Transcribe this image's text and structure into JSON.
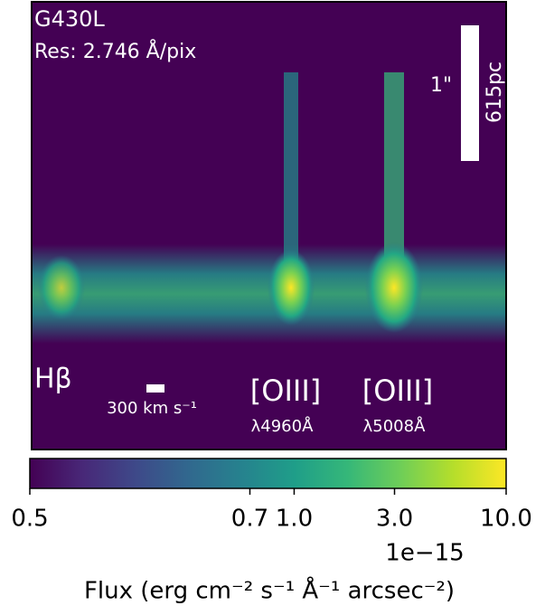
{
  "chart_data": {
    "type": "heatmap",
    "annotations": [
      "G430L",
      "Res: 2.746 Å/pix",
      "1\"",
      "615pc",
      "Hβ",
      "300 km s⁻¹",
      "[OIII]",
      "λ4960Å",
      "[OIII]",
      "λ5008Å"
    ],
    "colorbar": {
      "colormap": "viridis",
      "norm": "power",
      "gamma": 0.2,
      "clim": [
        0.5,
        10
      ],
      "ticks": [
        0.5,
        0.7,
        {
          "value": 1,
          "label": "1.0"
        },
        {
          "value": 3,
          "label": "3.0"
        },
        {
          "value": 10,
          "label": "10.0"
        }
      ],
      "offset_text": "1e−15",
      "label": "Flux (erg cm⁻² s⁻¹ Å⁻¹ arcsec⁻²)"
    }
  }
}
